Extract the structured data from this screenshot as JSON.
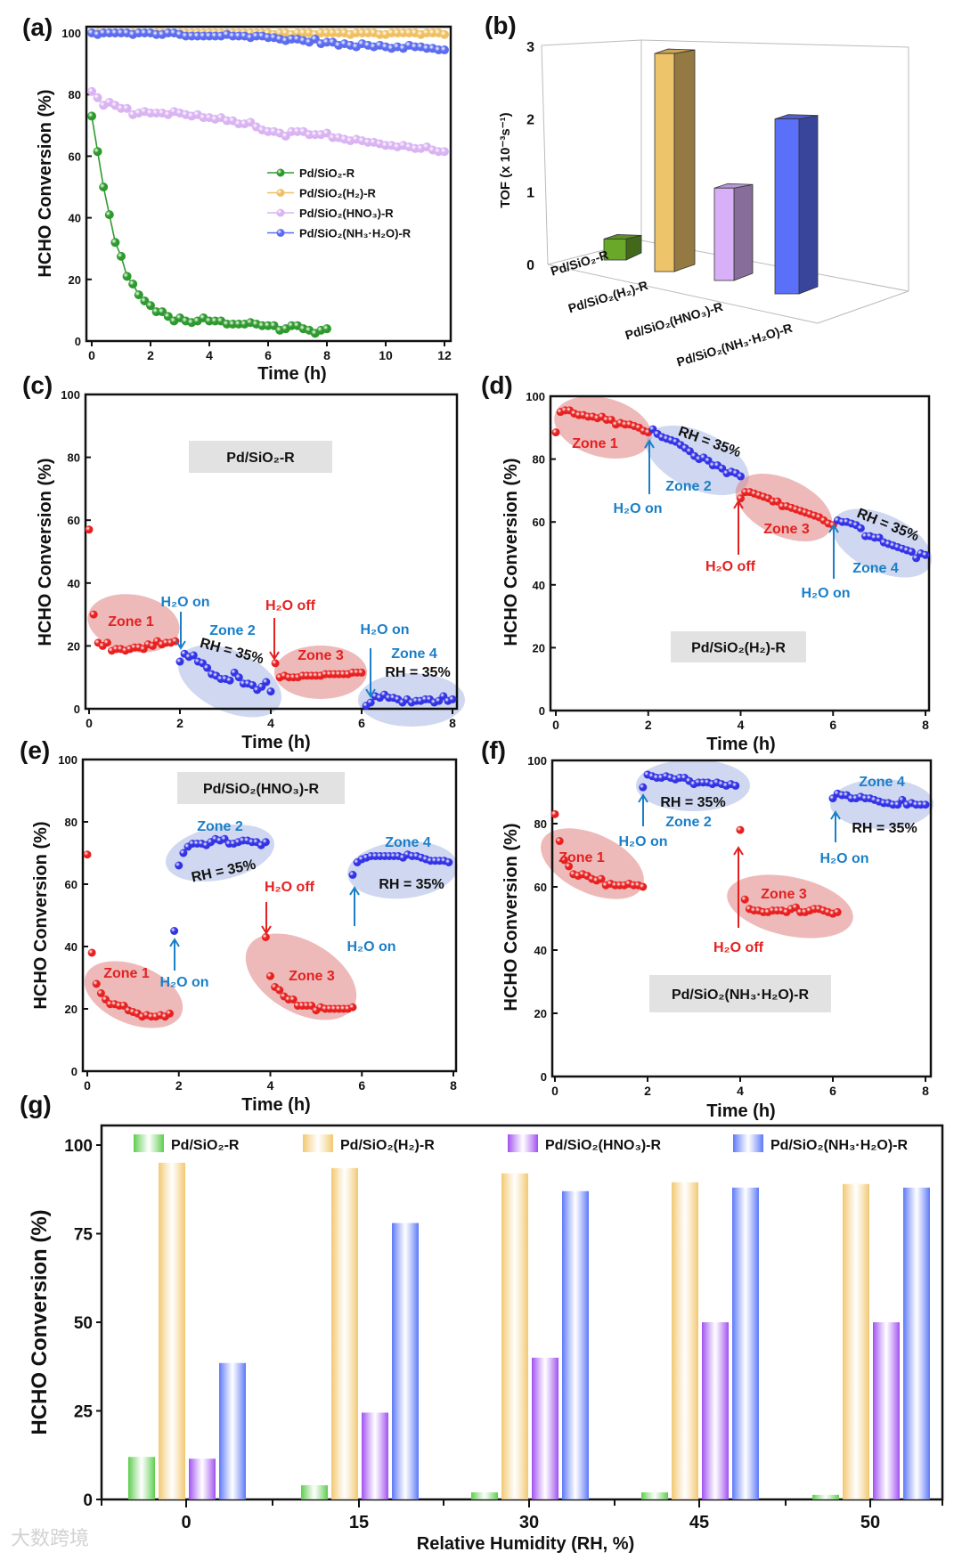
{
  "watermark": "大数跨境",
  "chart_data": [
    {
      "id": "a",
      "panel_label": "(a)",
      "type": "line",
      "xlabel": "Time (h)",
      "ylabel": "HCHO Conversion (%)",
      "xlim": [
        0,
        12
      ],
      "ylim": [
        0,
        100
      ],
      "xticks": [
        "0",
        "2",
        "4",
        "6",
        "8",
        "10",
        "12"
      ],
      "yticks": [
        "0",
        "20",
        "40",
        "60",
        "80",
        "100"
      ],
      "legend_position": "center-right",
      "series": [
        {
          "name": "Pd/SiO₂-R",
          "color": "#2e9a2e",
          "x_start": 0,
          "x_step": 0.2,
          "values": [
            73,
            61.5,
            50,
            41,
            32,
            27.5,
            21,
            18.5,
            15,
            13,
            11.5,
            9.5,
            9.5,
            8,
            6.5,
            7.5,
            6.5,
            6,
            6.5,
            7.5,
            6.5,
            6.5,
            6.5,
            5.5,
            5.5,
            5.5,
            5.5,
            6,
            5.5,
            5,
            5,
            5,
            3.5,
            4,
            5,
            5,
            4,
            3.5,
            2.5,
            3.5,
            4
          ]
        },
        {
          "name": "Pd/SiO₂(H₂)-R",
          "color": "#f0c060",
          "x_start": 0,
          "x_step": 0.2,
          "values": [
            100,
            100,
            100,
            100,
            100,
            100,
            100,
            100,
            100,
            100,
            100,
            100,
            100,
            100,
            100,
            100,
            100,
            100,
            100,
            100,
            100,
            100,
            100,
            100,
            100,
            100,
            100,
            100,
            100,
            100,
            100,
            99.5,
            100,
            100,
            99.5,
            100,
            100,
            100,
            99.5,
            100,
            100,
            100,
            100,
            100,
            99.5,
            100,
            100,
            100,
            100,
            99.5,
            99.5,
            100,
            100,
            100,
            100,
            100,
            99.5,
            100,
            100,
            100,
            99.5
          ]
        },
        {
          "name": "Pd/SiO₂(HNO₃)-R",
          "color": "#d9b3f2",
          "x_start": 0,
          "x_step": 0.2,
          "values": [
            81,
            79,
            76.5,
            77.5,
            76.5,
            75.5,
            75.5,
            73.5,
            74,
            74.5,
            74,
            74,
            74,
            73.5,
            74.5,
            74,
            73.5,
            73,
            73.5,
            72.5,
            72.5,
            72,
            72.5,
            71.5,
            71.5,
            70.5,
            70.5,
            71,
            69.5,
            68.5,
            68,
            68,
            67.5,
            66.5,
            68,
            68,
            68,
            67,
            67,
            67,
            67.5,
            66,
            66,
            65.5,
            65,
            65.5,
            65,
            64.5,
            64.5,
            64,
            63.5,
            63.5,
            63,
            63.5,
            63,
            62.5,
            62.5,
            63,
            62,
            61.5,
            61.5
          ]
        },
        {
          "name": "Pd/SiO₂(NH₃·H₂O)-R",
          "color": "#5b6cf0",
          "x_start": 0,
          "x_step": 0.2,
          "values": [
            100,
            99.5,
            100,
            100,
            100,
            100,
            100,
            99.5,
            100,
            100,
            100,
            99.5,
            99.5,
            100,
            100,
            99.5,
            99,
            99,
            99,
            99,
            99,
            99,
            99,
            99.5,
            99,
            99,
            99,
            98.5,
            99,
            99,
            98.5,
            98.5,
            98,
            97.5,
            98,
            98,
            97.5,
            97,
            98,
            96.5,
            97,
            97,
            96,
            96.5,
            96,
            95.5,
            96.5,
            96,
            95.5,
            96,
            95.5,
            95,
            95.5,
            95,
            96,
            95.5,
            95.5,
            95,
            95,
            94.5,
            94.5
          ]
        }
      ]
    },
    {
      "id": "b",
      "panel_label": "(b)",
      "type": "bar",
      "ylabel": "TOF (x 10⁻³s⁻¹)",
      "ylim": [
        0,
        3
      ],
      "yticks": [
        "0",
        "1",
        "2",
        "3"
      ],
      "categories": [
        "Pd/SiO₂-R",
        "Pd/SiO₂(H₂)-R",
        "Pd/SiO₂(HNO₃)-R",
        "Pd/SiO₂(NH₃·H₂O)-R"
      ],
      "values": [
        0.35,
        2.9,
        1.05,
        2.0
      ],
      "colors": [
        "#6aa82a",
        "#eec46a",
        "#d8b0f8",
        "#5a70f8"
      ]
    },
    {
      "id": "c",
      "panel_label": "(c)",
      "type": "scatter",
      "title_box": "Pd/SiO₂-R",
      "xlabel": "Time (h)",
      "ylabel": "HCHO Conversion (%)",
      "xlim": [
        0,
        8
      ],
      "ylim": [
        0,
        100
      ],
      "xticks": [
        "0",
        "2",
        "4",
        "6",
        "8"
      ],
      "yticks": [
        "0",
        "20",
        "40",
        "60",
        "80",
        "100"
      ],
      "series": [
        {
          "name": "Zone 1",
          "color": "#e82020",
          "x_start": 0,
          "x_step": 0.1,
          "values": [
            57,
            30,
            21,
            20,
            21,
            18.5,
            19,
            19,
            18.5,
            19,
            19.5,
            19.5,
            19,
            20.5,
            20,
            21.5,
            20.5,
            21,
            21,
            21.5
          ]
        },
        {
          "name": "Zone 2",
          "color": "#3333e6",
          "x_start": 2.0,
          "x_step": 0.1,
          "values": [
            15,
            17.5,
            16.5,
            17,
            15,
            14.5,
            13,
            11,
            10.5,
            9.5,
            9.5,
            9,
            11.5,
            10,
            8,
            8,
            7.5,
            6,
            7,
            8.5,
            5.5
          ]
        },
        {
          "name": "Zone 3",
          "color": "#e82020",
          "x_start": 4.1,
          "x_step": 0.1,
          "values": [
            14.5,
            10,
            10.5,
            10,
            10,
            10,
            10.5,
            10.5,
            10.5,
            10.5,
            10.5,
            11,
            11,
            11,
            11,
            11,
            11,
            11.5,
            11.5,
            11.5
          ]
        },
        {
          "name": "Zone 4",
          "color": "#3333e6",
          "x_start": 6.1,
          "x_step": 0.1,
          "values": [
            1,
            2,
            4,
            3.5,
            4.5,
            3.5,
            3.5,
            3,
            2,
            3,
            2,
            2.5,
            2.5,
            3,
            3,
            2,
            2.5,
            4,
            2.5,
            3
          ]
        }
      ],
      "annotations": [
        "Zone 1",
        "H₂O on",
        "Zone 2",
        "RH = 35%",
        "H₂O off",
        "Zone 3",
        "H₂O on",
        "Zone 4",
        "RH = 35%"
      ]
    },
    {
      "id": "d",
      "panel_label": "(d)",
      "type": "scatter",
      "title_box": "Pd/SiO₂(H₂)-R",
      "xlabel": "Time (h)",
      "ylabel": "HCHO Conversion (%)",
      "xlim": [
        0,
        8
      ],
      "ylim": [
        0,
        100
      ],
      "xticks": [
        "0",
        "2",
        "4",
        "6",
        "8"
      ],
      "yticks": [
        "0",
        "20",
        "40",
        "60",
        "80",
        "100"
      ],
      "series": [
        {
          "name": "Zone 1",
          "color": "#e82020",
          "x_start": 0,
          "x_step": 0.1,
          "values": [
            88.5,
            95,
            95.5,
            95.5,
            94.5,
            94,
            94,
            93.5,
            93.5,
            93,
            93.5,
            92.5,
            92.5,
            91,
            91.5,
            91,
            91,
            90.5,
            90,
            89,
            88.5
          ]
        },
        {
          "name": "Zone 2",
          "color": "#3333e6",
          "x_start": 2.1,
          "x_step": 0.1,
          "values": [
            89.5,
            88,
            87,
            86.5,
            86,
            85.5,
            84.5,
            83.5,
            82.5,
            81,
            80,
            80.5,
            79.5,
            78,
            78,
            77,
            75.5,
            76,
            75.5,
            74.5
          ]
        },
        {
          "name": "Zone 3",
          "color": "#e82020",
          "x_start": 4.0,
          "x_step": 0.1,
          "values": [
            67.5,
            69.5,
            69.5,
            69,
            68.5,
            68,
            67.5,
            66.5,
            66.5,
            65,
            65,
            64.5,
            64,
            63.5,
            63,
            62.5,
            62,
            61.5,
            60.5,
            59.5,
            59
          ]
        },
        {
          "name": "Zone 4",
          "color": "#3333e6",
          "x_start": 6.1,
          "x_step": 0.1,
          "values": [
            60.5,
            60,
            60,
            59.5,
            59,
            58,
            55.5,
            55.5,
            55,
            55,
            53.5,
            53,
            52.5,
            52,
            51.5,
            51,
            50.5,
            48.5,
            50,
            49.5
          ]
        }
      ],
      "annotations": [
        "Zone 1",
        "RH = 35%",
        "Zone 2",
        "H₂O on",
        "Zone 3",
        "H₂O off",
        "RH = 35%",
        "Zone 4",
        "H₂O on"
      ]
    },
    {
      "id": "e",
      "panel_label": "(e)",
      "type": "scatter",
      "title_box": "Pd/SiO₂(HNO₃)-R",
      "xlabel": "Time (h)",
      "ylabel": "HCHO Conversion (%)",
      "xlim": [
        0,
        8
      ],
      "ylim": [
        0,
        100
      ],
      "xticks": [
        "0",
        "2",
        "4",
        "6",
        "8"
      ],
      "yticks": [
        "0",
        "20",
        "40",
        "60",
        "80",
        "100"
      ],
      "series": [
        {
          "name": "Zone 1",
          "color": "#e82020",
          "x_start": 0,
          "x_step": 0.1,
          "values": [
            69.5,
            38,
            28,
            25,
            23,
            21.5,
            21.5,
            21,
            21,
            19.5,
            19,
            18.5,
            17.5,
            18,
            17.5,
            17.5,
            18,
            17.5,
            18.5
          ]
        },
        {
          "name": "H₂O on point",
          "color": "#3333e6",
          "x_start": 1.9,
          "x_step": 0.1,
          "values": [
            45
          ]
        },
        {
          "name": "Zone 2",
          "color": "#3333e6",
          "x_start": 2.0,
          "x_step": 0.1,
          "values": [
            66,
            70,
            72,
            73,
            73,
            73,
            72.5,
            73.5,
            74.5,
            74,
            74.5,
            73,
            73,
            73.5,
            74,
            74,
            73.5,
            73.5,
            72.5,
            73.5
          ]
        },
        {
          "name": "Zone 3",
          "color": "#e82020",
          "x_start": 3.9,
          "x_step": 0.1,
          "values": [
            43,
            30.5,
            27,
            26,
            24,
            23,
            23,
            21,
            21,
            21,
            21,
            19.5,
            20.5,
            20,
            20,
            20,
            20,
            20,
            20,
            20.5
          ]
        },
        {
          "name": "Zone 4",
          "color": "#3333e6",
          "x_start": 5.8,
          "x_step": 0.1,
          "values": [
            63,
            67,
            68,
            68.5,
            69,
            69,
            69,
            69,
            69,
            69,
            69,
            68.5,
            69.5,
            69,
            69,
            68.5,
            68,
            67.5,
            67.5,
            67.5,
            67.5,
            67
          ]
        }
      ],
      "annotations": [
        "Zone 2",
        "RH = 35%",
        "Zone 1",
        "H₂O on",
        "H₂O off",
        "Zone 3",
        "Zone 4",
        "RH = 35%",
        "H₂O on"
      ]
    },
    {
      "id": "f",
      "panel_label": "(f)",
      "type": "scatter",
      "title_box": "Pd/SiO₂(NH₃·H₂O)-R",
      "xlabel": "Time (h)",
      "ylabel": "HCHO Conversion (%)",
      "xlim": [
        0,
        8
      ],
      "ylim": [
        0,
        100
      ],
      "xticks": [
        "0",
        "2",
        "4",
        "6",
        "8"
      ],
      "yticks": [
        "0",
        "20",
        "40",
        "60",
        "80",
        "100"
      ],
      "series": [
        {
          "name": "Zone 1",
          "color": "#e82020",
          "x_start": 0,
          "x_step": 0.1,
          "values": [
            83,
            74.5,
            68.5,
            66.5,
            64,
            63.5,
            64,
            63.5,
            62.5,
            62,
            62.5,
            60.5,
            61,
            60.5,
            60.5,
            60.5,
            61,
            60.5,
            60.5,
            60
          ]
        },
        {
          "name": "Zone 2",
          "color": "#3333e6",
          "x_start": 1.9,
          "x_step": 0.1,
          "values": [
            91.5,
            95.5,
            95,
            94.5,
            94.5,
            95,
            94.5,
            94,
            94.5,
            94.5,
            93.5,
            92.5,
            93,
            93,
            93,
            92.5,
            93,
            92.5,
            92,
            92.5,
            92
          ]
        },
        {
          "name": "Zone 3",
          "color": "#e82020",
          "x_start": 4.0,
          "x_step": 0.1,
          "values": [
            78,
            56,
            53,
            52.5,
            52.5,
            52,
            52,
            52.5,
            52.5,
            52.5,
            52,
            53,
            53.5,
            52,
            52,
            52.5,
            53,
            53,
            52.5,
            52,
            51.5,
            52
          ]
        },
        {
          "name": "Zone 4",
          "color": "#3333e6",
          "x_start": 6.0,
          "x_step": 0.1,
          "values": [
            88,
            89.5,
            89,
            89,
            88,
            88,
            88.5,
            88,
            88,
            87.5,
            87,
            86.5,
            86.5,
            86,
            86,
            87.5,
            86,
            86.5,
            86,
            86,
            86
          ]
        }
      ],
      "annotations": [
        "RH = 35%",
        "Zone 2",
        "H₂O on",
        "Zone 1",
        "H₂O off",
        "Zone 3",
        "Zone 4",
        "RH = 35%",
        "H₂O on"
      ]
    },
    {
      "id": "g",
      "panel_label": "(g)",
      "type": "bar",
      "xlabel": "Relative Humidity (RH, %)",
      "ylabel": "HCHO Conversion (%)",
      "ylim": [
        0,
        105
      ],
      "yticks": [
        "0",
        "25",
        "50",
        "75",
        "100"
      ],
      "categories": [
        "0",
        "15",
        "30",
        "45",
        "50"
      ],
      "legend_position": "top",
      "series": [
        {
          "name": "Pd/SiO₂-R",
          "color": "#5ccc4c",
          "values": [
            12,
            4,
            2,
            2,
            1.3
          ]
        },
        {
          "name": "Pd/SiO₂(H₂)-R",
          "color": "#f2c870",
          "values": [
            95,
            93.5,
            92,
            89.5,
            89
          ]
        },
        {
          "name": "Pd/SiO₂(HNO₃)-R",
          "color": "#a050f0",
          "values": [
            11.5,
            24.5,
            40,
            50,
            50
          ]
        },
        {
          "name": "Pd/SiO₂(NH₃·H₂O)-R",
          "color": "#5c78f8",
          "values": [
            38.5,
            78,
            87,
            88,
            88
          ]
        }
      ]
    }
  ]
}
